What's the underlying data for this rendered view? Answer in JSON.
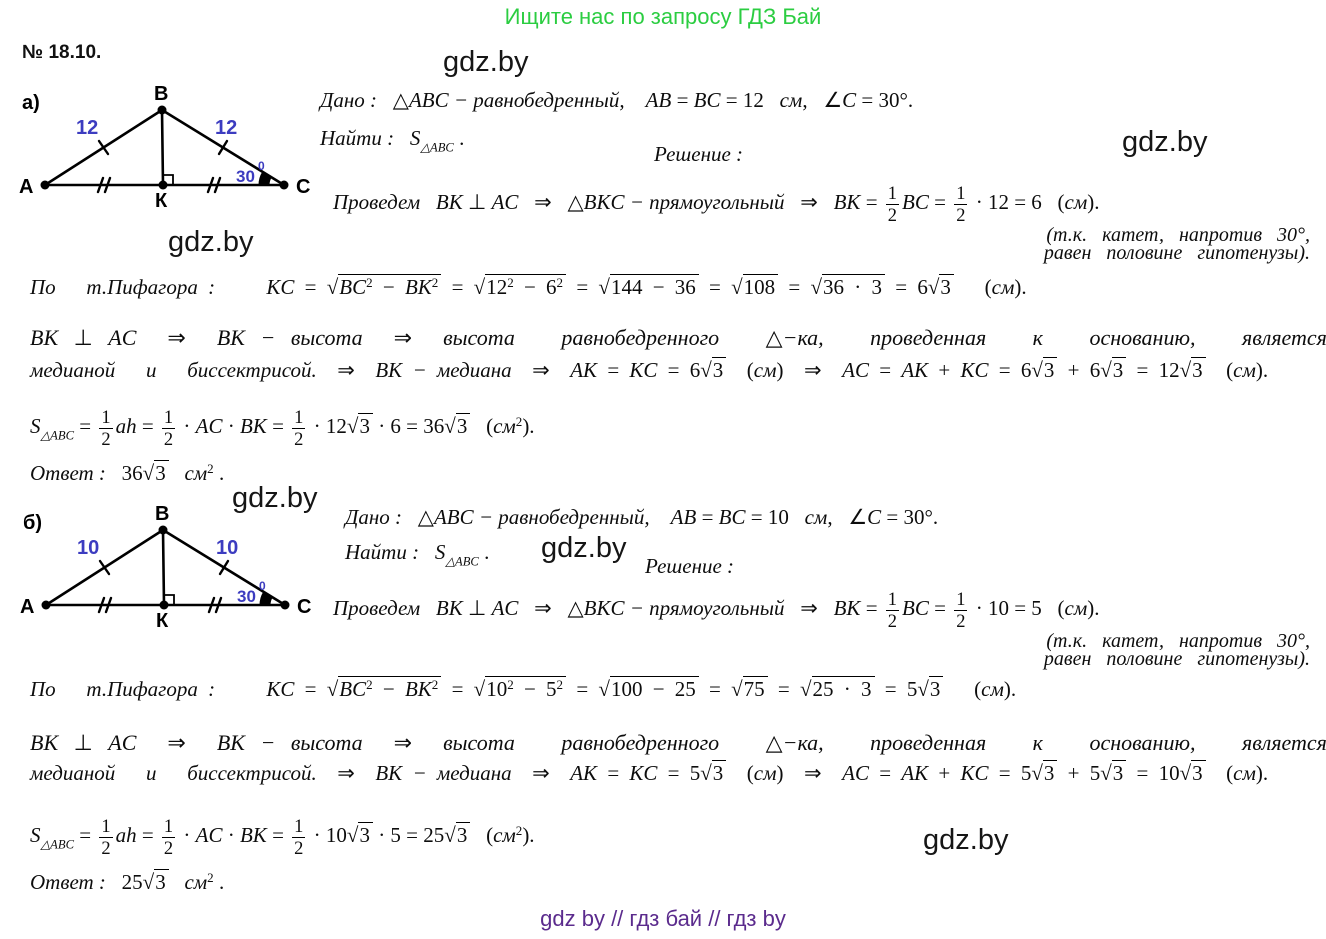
{
  "header": {
    "promo": "Ищите нас по запросу ГДЗ Бай"
  },
  "problem": {
    "number": "№ 18.10."
  },
  "watermark_text": "gdz.by",
  "footer": {
    "text": "gdz by  //  гдз бай  //  гдз by"
  },
  "colors": {
    "green": "#2bcd41",
    "blue": "#3c3cc0",
    "purple": "#5b2b8d",
    "ink": "#0d0d0d"
  },
  "part_a": {
    "label": "а)",
    "diagram": {
      "vertex_a": "A",
      "vertex_b": "B",
      "vertex_c": "C",
      "foot": "К",
      "side_left": "12",
      "side_right": "12",
      "angle": "30",
      "angle_sup": "0"
    },
    "dano": [
      {
        "i": "Дано :   "
      },
      {
        "u": "△"
      },
      {
        "i": "ABC"
      },
      {
        "i": " − равнобедренный,    "
      },
      {
        "i": "AB"
      },
      {
        "u": " = "
      },
      {
        "i": "BC"
      },
      {
        "u": " = 12   "
      },
      {
        "i": "см"
      },
      {
        "u": ",   ∠"
      },
      {
        "i": "C"
      },
      {
        "u": " = 30°."
      }
    ],
    "naiti": [
      {
        "i": "Найти :   "
      },
      {
        "i": "S"
      },
      {
        "sub": "△ABC"
      },
      {
        "u": " ."
      }
    ],
    "reshenie": "Решение :",
    "provedem": [
      {
        "i": "Проведем   "
      },
      {
        "i": "BK"
      },
      {
        "u": " ⊥ "
      },
      {
        "i": "AC"
      },
      {
        "u": "   ⇒   "
      },
      {
        "u": "△"
      },
      {
        "i": "BKC"
      },
      {
        "i": " − прямоугольный"
      },
      {
        "u": "   ⇒   "
      },
      {
        "i": "BK"
      },
      {
        "u": " = "
      },
      {
        "f": [
          "1",
          "2"
        ]
      },
      {
        "i": "BC"
      },
      {
        "u": " = "
      },
      {
        "f": [
          "1",
          "2"
        ]
      },
      {
        "u": " · 12 = 6   ("
      },
      {
        "i": "см"
      },
      {
        "u": ")."
      }
    ],
    "tk1": "(т.к.   катет,   напротив   30°,",
    "tk2": "равен   половине   гипотенузы).",
    "pifagor": [
      {
        "i": "По   т.Пифагора :     "
      },
      {
        "i": "KC"
      },
      {
        "u": " = "
      },
      {
        "q": [
          {
            "i": "BC"
          },
          {
            "sup": "2"
          },
          {
            "u": " − "
          },
          {
            "i": "BK"
          },
          {
            "sup": "2"
          }
        ]
      },
      {
        "u": " = "
      },
      {
        "q": [
          {
            "u": "12"
          },
          {
            "sup": "2"
          },
          {
            "u": " − 6"
          },
          {
            "sup": "2"
          }
        ]
      },
      {
        "u": " = "
      },
      {
        "q": [
          {
            "u": "144 − 36"
          }
        ]
      },
      {
        "u": " = "
      },
      {
        "q": [
          {
            "u": "108"
          }
        ]
      },
      {
        "u": " = "
      },
      {
        "q": [
          {
            "u": "36 · 3"
          }
        ]
      },
      {
        "u": " = 6"
      },
      {
        "q": [
          {
            "u": "3"
          }
        ]
      },
      {
        "u": "   ("
      },
      {
        "i": "см"
      },
      {
        "u": ")."
      }
    ],
    "vysota": [
      {
        "i": "BK"
      },
      {
        "u": " ⊥ "
      },
      {
        "i": "AC"
      },
      {
        "u": "  ⇒  "
      },
      {
        "i": "BK − высота"
      },
      {
        "u": "  ⇒  "
      },
      {
        "i": "высота   равнобедренного   "
      },
      {
        "u": "△"
      },
      {
        "i": "−ка,   проведенная   к   основанию,   является"
      }
    ],
    "mediana": [
      {
        "i": "медианой   и   биссектрисой."
      },
      {
        "u": "  ⇒  "
      },
      {
        "i": "BK − медиана"
      },
      {
        "u": "  ⇒  "
      },
      {
        "i": "AK"
      },
      {
        "u": " = "
      },
      {
        "i": "KC"
      },
      {
        "u": " = 6"
      },
      {
        "q": [
          {
            "u": "3"
          }
        ]
      },
      {
        "u": "  ("
      },
      {
        "i": "см"
      },
      {
        "u": ")  ⇒  "
      },
      {
        "i": "AC"
      },
      {
        "u": " = "
      },
      {
        "i": "AK"
      },
      {
        "u": " + "
      },
      {
        "i": "KC"
      },
      {
        "u": " = 6"
      },
      {
        "q": [
          {
            "u": "3"
          }
        ]
      },
      {
        "u": " + 6"
      },
      {
        "q": [
          {
            "u": "3"
          }
        ]
      },
      {
        "u": " = 12"
      },
      {
        "q": [
          {
            "u": "3"
          }
        ]
      },
      {
        "u": "  ("
      },
      {
        "i": "см"
      },
      {
        "u": ")."
      }
    ],
    "area": [
      {
        "i": "S"
      },
      {
        "sub": "△ABC"
      },
      {
        "u": " = "
      },
      {
        "f": [
          "1",
          "2"
        ]
      },
      {
        "i": "ah"
      },
      {
        "u": " = "
      },
      {
        "f": [
          "1",
          "2"
        ]
      },
      {
        "u": " · "
      },
      {
        "i": "AC"
      },
      {
        "u": " · "
      },
      {
        "i": "BK"
      },
      {
        "u": " = "
      },
      {
        "f": [
          "1",
          "2"
        ]
      },
      {
        "u": " · 12"
      },
      {
        "q": [
          {
            "u": "3"
          }
        ]
      },
      {
        "u": " · 6 = 36"
      },
      {
        "q": [
          {
            "u": "3"
          }
        ]
      },
      {
        "u": "   ("
      },
      {
        "i": "см"
      },
      {
        "sup": "2"
      },
      {
        "u": ")."
      }
    ],
    "otvet": [
      {
        "i": "Ответ :   "
      },
      {
        "u": "36"
      },
      {
        "q": [
          {
            "u": "3"
          }
        ]
      },
      {
        "u": "   "
      },
      {
        "i": "см"
      },
      {
        "sup": "2"
      },
      {
        "u": " ."
      }
    ]
  },
  "part_b": {
    "label": "б)",
    "diagram": {
      "vertex_a": "A",
      "vertex_b": "B",
      "vertex_c": "C",
      "foot": "К",
      "side_left": "10",
      "side_right": "10",
      "angle": "30",
      "angle_sup": "0"
    },
    "dano": [
      {
        "i": "Дано :   "
      },
      {
        "u": "△"
      },
      {
        "i": "ABC"
      },
      {
        "i": " − равнобедренный,    "
      },
      {
        "i": "AB"
      },
      {
        "u": " = "
      },
      {
        "i": "BC"
      },
      {
        "u": " = 10   "
      },
      {
        "i": "см"
      },
      {
        "u": ",   ∠"
      },
      {
        "i": "C"
      },
      {
        "u": " = 30°."
      }
    ],
    "naiti": [
      {
        "i": "Найти :   "
      },
      {
        "i": "S"
      },
      {
        "sub": "△ABC"
      },
      {
        "u": " ."
      }
    ],
    "reshenie": "Решение :",
    "provedem": [
      {
        "i": "Проведем   "
      },
      {
        "i": "BK"
      },
      {
        "u": " ⊥ "
      },
      {
        "i": "AC"
      },
      {
        "u": "   ⇒   "
      },
      {
        "u": "△"
      },
      {
        "i": "BKC"
      },
      {
        "i": " − прямоугольный"
      },
      {
        "u": "   ⇒   "
      },
      {
        "i": "BK"
      },
      {
        "u": " = "
      },
      {
        "f": [
          "1",
          "2"
        ]
      },
      {
        "i": "BC"
      },
      {
        "u": " = "
      },
      {
        "f": [
          "1",
          "2"
        ]
      },
      {
        "u": " · 10 = 5   ("
      },
      {
        "i": "см"
      },
      {
        "u": ")."
      }
    ],
    "tk1": "(т.к.   катет,   напротив   30°,",
    "tk2": "равен   половине   гипотенузы).",
    "pifagor": [
      {
        "i": "По   т.Пифагора :     "
      },
      {
        "i": "KC"
      },
      {
        "u": " = "
      },
      {
        "q": [
          {
            "i": "BC"
          },
          {
            "sup": "2"
          },
          {
            "u": " − "
          },
          {
            "i": "BK"
          },
          {
            "sup": "2"
          }
        ]
      },
      {
        "u": " = "
      },
      {
        "q": [
          {
            "u": "10"
          },
          {
            "sup": "2"
          },
          {
            "u": " − 5"
          },
          {
            "sup": "2"
          }
        ]
      },
      {
        "u": " = "
      },
      {
        "q": [
          {
            "u": "100 − 25"
          }
        ]
      },
      {
        "u": " = "
      },
      {
        "q": [
          {
            "u": "75"
          }
        ]
      },
      {
        "u": " = "
      },
      {
        "q": [
          {
            "u": "25 · 3"
          }
        ]
      },
      {
        "u": " = 5"
      },
      {
        "q": [
          {
            "u": "3"
          }
        ]
      },
      {
        "u": "   ("
      },
      {
        "i": "см"
      },
      {
        "u": ")."
      }
    ],
    "vysota": [
      {
        "i": "BK"
      },
      {
        "u": " ⊥ "
      },
      {
        "i": "AC"
      },
      {
        "u": "  ⇒  "
      },
      {
        "i": "BK − высота"
      },
      {
        "u": "  ⇒  "
      },
      {
        "i": "высота   равнобедренного   "
      },
      {
        "u": "△"
      },
      {
        "i": "−ка,   проведенная   к   основанию,   является"
      }
    ],
    "mediana": [
      {
        "i": "медианой   и   биссектрисой."
      },
      {
        "u": "  ⇒  "
      },
      {
        "i": "BK − медиана"
      },
      {
        "u": "  ⇒  "
      },
      {
        "i": "AK"
      },
      {
        "u": " = "
      },
      {
        "i": "KC"
      },
      {
        "u": " = 5"
      },
      {
        "q": [
          {
            "u": "3"
          }
        ]
      },
      {
        "u": "  ("
      },
      {
        "i": "см"
      },
      {
        "u": ")  ⇒  "
      },
      {
        "i": "AC"
      },
      {
        "u": " = "
      },
      {
        "i": "AK"
      },
      {
        "u": " + "
      },
      {
        "i": "KC"
      },
      {
        "u": " = 5"
      },
      {
        "q": [
          {
            "u": "3"
          }
        ]
      },
      {
        "u": " + 5"
      },
      {
        "q": [
          {
            "u": "3"
          }
        ]
      },
      {
        "u": " = 10"
      },
      {
        "q": [
          {
            "u": "3"
          }
        ]
      },
      {
        "u": "  ("
      },
      {
        "i": "см"
      },
      {
        "u": ")."
      }
    ],
    "area": [
      {
        "i": "S"
      },
      {
        "sub": "△ABC"
      },
      {
        "u": " = "
      },
      {
        "f": [
          "1",
          "2"
        ]
      },
      {
        "i": "ah"
      },
      {
        "u": " = "
      },
      {
        "f": [
          "1",
          "2"
        ]
      },
      {
        "u": " · "
      },
      {
        "i": "AC"
      },
      {
        "u": " · "
      },
      {
        "i": "BK"
      },
      {
        "u": " = "
      },
      {
        "f": [
          "1",
          "2"
        ]
      },
      {
        "u": " · 10"
      },
      {
        "q": [
          {
            "u": "3"
          }
        ]
      },
      {
        "u": " · 5 = 25"
      },
      {
        "q": [
          {
            "u": "3"
          }
        ]
      },
      {
        "u": "   ("
      },
      {
        "i": "см"
      },
      {
        "sup": "2"
      },
      {
        "u": ")."
      }
    ],
    "otvet": [
      {
        "i": "Ответ :   "
      },
      {
        "u": "25"
      },
      {
        "q": [
          {
            "u": "3"
          }
        ]
      },
      {
        "u": "   "
      },
      {
        "i": "см"
      },
      {
        "sup": "2"
      },
      {
        "u": " ."
      }
    ]
  }
}
